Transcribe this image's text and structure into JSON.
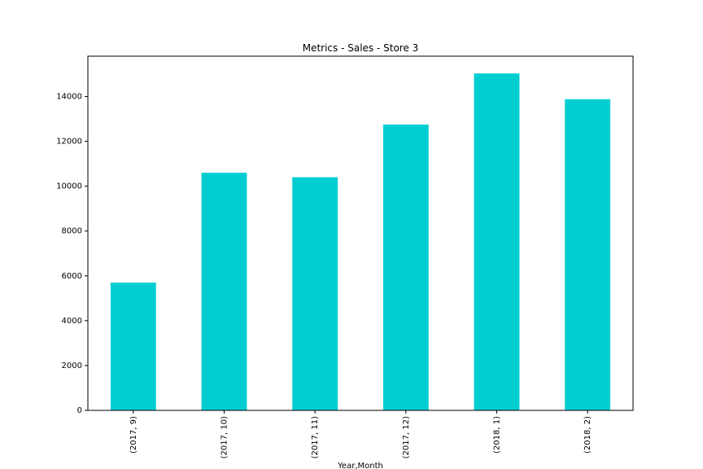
{
  "chart_data": {
    "type": "bar",
    "title": "Metrics - Sales - Store 3",
    "xlabel": "Year,Month",
    "ylabel": "",
    "categories": [
      "(2017, 9)",
      "(2017, 10)",
      "(2017, 11)",
      "(2017, 12)",
      "(2018, 1)",
      "(2018, 2)"
    ],
    "values": [
      5700,
      10600,
      10400,
      12750,
      15030,
      13880
    ],
    "ylim": [
      0,
      15800
    ],
    "yticks": [
      0,
      2000,
      4000,
      6000,
      8000,
      10000,
      12000,
      14000
    ],
    "bar_color": "#00CED1",
    "grid": false,
    "legend": "none"
  }
}
